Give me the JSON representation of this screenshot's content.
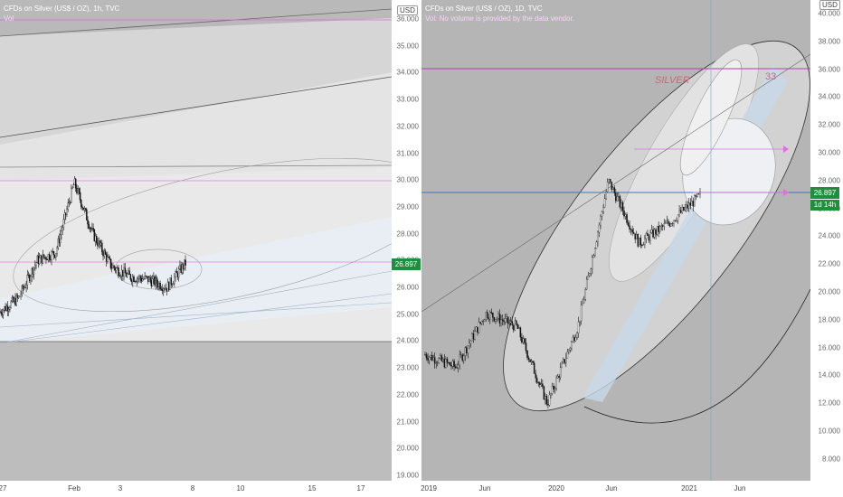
{
  "left_chart": {
    "title": "CFDs on Silver (US$ / OZ), 1h, TVC",
    "volume_label": "Vol",
    "unit": "USD",
    "last_price": "26.897",
    "y_ticks": [
      "36.000",
      "35.000",
      "34.000",
      "33.000",
      "32.000",
      "31.000",
      "30.000",
      "29.000",
      "28.000",
      "27.000",
      "26.000",
      "25.000",
      "24.000",
      "23.000",
      "22.000",
      "21.000",
      "20.000",
      "19.000"
    ],
    "x_ticks": [
      "27",
      "Feb",
      "3",
      "8",
      "10",
      "15",
      "17"
    ]
  },
  "right_chart": {
    "title": "CFDs on Silver (US$ / OZ), 1D, TVC",
    "volume_label": "Vol: No volume is provided by the data vendor.",
    "unit": "USD",
    "last_price": "26.897",
    "countdown": "1d 14h",
    "annotation_silver": "SILVER",
    "annotation_number": "33",
    "y_ticks": [
      "40.000",
      "38.000",
      "36.000",
      "34.000",
      "32.000",
      "30.000",
      "28.000",
      "26.000",
      "24.000",
      "22.000",
      "20.000",
      "18.000",
      "16.000",
      "14.000",
      "12.000",
      "10.000",
      "8.000"
    ],
    "x_ticks": [
      "2019",
      "Jun",
      "2020",
      "Jun",
      "2021",
      "Jun"
    ]
  },
  "chart_data": [
    {
      "type": "candlestick",
      "title": "CFDs on Silver (US$ / OZ), 1h, TVC",
      "ylim": [
        19,
        36.5
      ],
      "x_labels": [
        "27",
        "Feb",
        "3",
        "8",
        "10",
        "15",
        "17"
      ],
      "approx_close_path": [
        {
          "x": "Jan 27",
          "y": 25.1
        },
        {
          "x": "Jan 28",
          "y": 25.6
        },
        {
          "x": "Jan 29",
          "y": 27.0
        },
        {
          "x": "Jan 30",
          "y": 27.3
        },
        {
          "x": "Feb 1",
          "y": 29.9
        },
        {
          "x": "Feb 2",
          "y": 28.0
        },
        {
          "x": "Feb 3",
          "y": 26.8
        },
        {
          "x": "Feb 4",
          "y": 26.4
        },
        {
          "x": "Feb 5",
          "y": 26.3
        },
        {
          "x": "Feb 6",
          "y": 26.0
        },
        {
          "x": "Feb 7",
          "y": 26.897
        }
      ],
      "last": 26.897
    },
    {
      "type": "candlestick",
      "title": "CFDs on Silver (US$ / OZ), 1D, TVC",
      "ylim": [
        7,
        41
      ],
      "x_labels": [
        "2019",
        "Jun",
        "2020",
        "Jun",
        "2021",
        "Jun"
      ],
      "approx_close_path": [
        {
          "x": "2019-01",
          "y": 15.5
        },
        {
          "x": "2019-05",
          "y": 14.6
        },
        {
          "x": "2019-09",
          "y": 18.5
        },
        {
          "x": "2019-12",
          "y": 17.5
        },
        {
          "x": "2020-03",
          "y": 12.0
        },
        {
          "x": "2020-05",
          "y": 17.5
        },
        {
          "x": "2020-08",
          "y": 28.0
        },
        {
          "x": "2020-10",
          "y": 23.5
        },
        {
          "x": "2020-12",
          "y": 25.0
        },
        {
          "x": "2021-02",
          "y": 26.897
        }
      ],
      "last": 26.897
    }
  ]
}
